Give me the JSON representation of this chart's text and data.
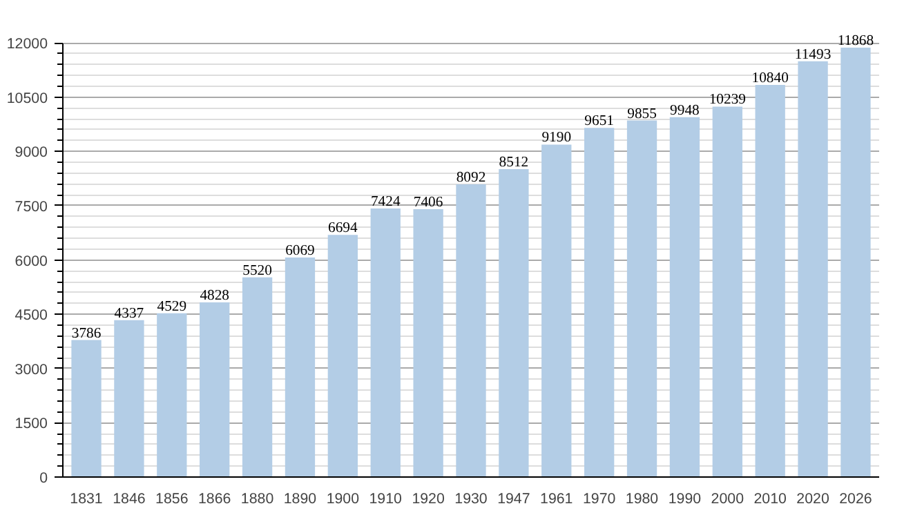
{
  "chart_data": {
    "type": "bar",
    "categories": [
      "1831",
      "1846",
      "1856",
      "1866",
      "1880",
      "1890",
      "1900",
      "1910",
      "1920",
      "1930",
      "1947",
      "1961",
      "1970",
      "1980",
      "1990",
      "2000",
      "2010",
      "2020",
      "2026"
    ],
    "values": [
      3786,
      4337,
      4529,
      4828,
      5520,
      6069,
      6694,
      7424,
      7406,
      8092,
      8512,
      9190,
      9651,
      9855,
      9948,
      10239,
      10840,
      11493,
      11868
    ],
    "color": "#b3cde6",
    "ylim": [
      0,
      12000
    ],
    "yticks": [
      0,
      1500,
      3000,
      4500,
      6000,
      7500,
      9000,
      10500,
      12000
    ],
    "grid": "y",
    "data_labels": true
  }
}
